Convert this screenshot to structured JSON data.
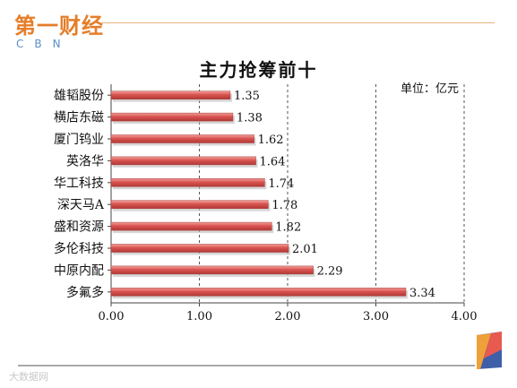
{
  "brand": {
    "logo_text": "第一财经",
    "logo_sub": "CBN",
    "watermark": "大数据网"
  },
  "chart_data": {
    "type": "bar",
    "orientation": "horizontal",
    "title": "主力抢筹前十",
    "unit": "单位：亿元",
    "categories": [
      "雄韬股份",
      "横店东磁",
      "厦门钨业",
      "英洛华",
      "华工科技",
      "深天马A",
      "盛和资源",
      "多伦科技",
      "中原内配",
      "多氟多"
    ],
    "values": [
      1.35,
      1.38,
      1.62,
      1.64,
      1.74,
      1.78,
      1.82,
      2.01,
      2.29,
      3.34
    ],
    "value_labels": [
      "1.35",
      "1.38",
      "1.62",
      "1.64",
      "1.74",
      "1.78",
      "1.82",
      "2.01",
      "2.29",
      "3.34"
    ],
    "xlim": [
      0,
      4
    ],
    "xticks": [
      "0.00",
      "1.00",
      "2.00",
      "3.00",
      "4.00"
    ],
    "grid": "vertical-dashed",
    "bar_color": "#d9534f"
  }
}
